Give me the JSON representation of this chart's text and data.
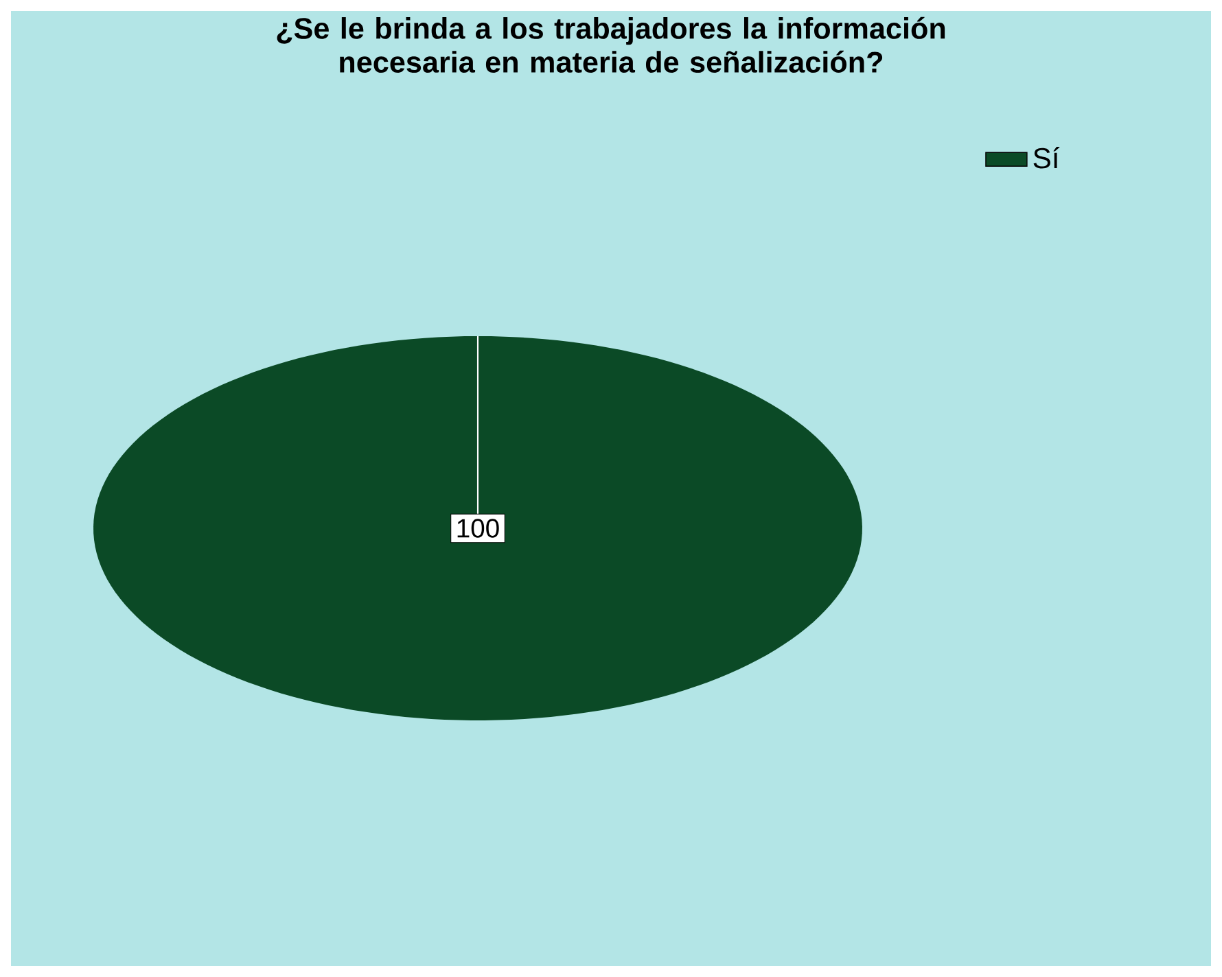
{
  "chart_data": {
    "type": "pie",
    "title": "¿Se le brinda a los trabajadores la información necesaria en materia de señalización?",
    "categories": [
      "Sí"
    ],
    "values": [
      100
    ],
    "colors": [
      "#0b4a26"
    ],
    "data_labels": true,
    "legend": "top right"
  }
}
